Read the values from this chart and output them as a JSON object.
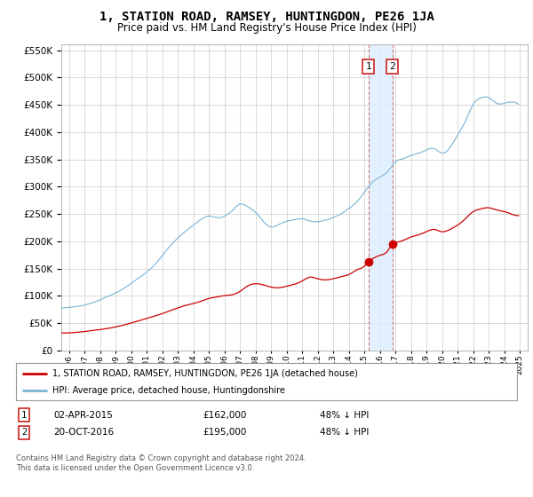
{
  "title": "1, STATION ROAD, RAMSEY, HUNTINGDON, PE26 1JA",
  "subtitle": "Price paid vs. HM Land Registry's House Price Index (HPI)",
  "legend_line1": "1, STATION ROAD, RAMSEY, HUNTINGDON, PE26 1JA (detached house)",
  "legend_line2": "HPI: Average price, detached house, Huntingdonshire",
  "footnote": "Contains HM Land Registry data © Crown copyright and database right 2024.\nThis data is licensed under the Open Government Licence v3.0.",
  "transaction1_label": "1",
  "transaction1_date": "02-APR-2015",
  "transaction1_price": "£162,000",
  "transaction1_hpi": "48% ↓ HPI",
  "transaction1_year": 2015.25,
  "transaction1_value": 162000,
  "transaction2_label": "2",
  "transaction2_date": "20-OCT-2016",
  "transaction2_price": "£195,000",
  "transaction2_hpi": "48% ↓ HPI",
  "transaction2_year": 2016.79,
  "transaction2_value": 195000,
  "hpi_color": "#7ab3d4",
  "price_color": "#cc0000",
  "vline_color": "#d08080",
  "span_color": "#ddeeff",
  "grid_color": "#cccccc",
  "background_color": "#ffffff",
  "ylim_max": 560000,
  "xlim_start": 1995.5,
  "xlim_end": 2025.5,
  "title_fontsize": 10,
  "subtitle_fontsize": 8.5
}
